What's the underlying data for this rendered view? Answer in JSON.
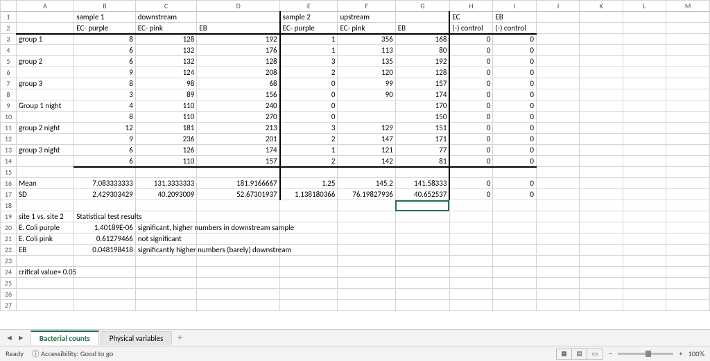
{
  "columns": [
    "A",
    "B",
    "C",
    "D",
    "E",
    "F",
    "G",
    "H",
    "I",
    "J",
    "K",
    "L",
    "M"
  ],
  "rowCount": 27,
  "selectedCell": {
    "row": 18,
    "col": 6
  },
  "headerRow1": {
    "B": "sample 1",
    "C": "downstream",
    "E": "sample 2",
    "F": "upstream",
    "H": "EC",
    "I": "EB"
  },
  "headerRow2": {
    "B": "EC- purple",
    "C": "EC- pink",
    "D": "EB",
    "E": "EC- purple",
    "F": "EC- pink",
    "G": "EB",
    "H": "(-) control",
    "I": "(-) control"
  },
  "dataRows": [
    {
      "A": "group 1",
      "B": 8,
      "C": 128,
      "D": 192,
      "E": 1,
      "F": 356,
      "G": 168,
      "H": 0,
      "I": 0
    },
    {
      "A": "",
      "B": 6,
      "C": 132,
      "D": 176,
      "E": 1,
      "F": 113,
      "G": 80,
      "H": 0,
      "I": 0
    },
    {
      "A": "group 2",
      "B": 6,
      "C": 132,
      "D": 128,
      "E": 3,
      "F": 135,
      "G": 192,
      "H": 0,
      "I": 0
    },
    {
      "A": "",
      "B": 9,
      "C": 124,
      "D": 208,
      "E": 2,
      "F": 120,
      "G": 128,
      "H": 0,
      "I": 0
    },
    {
      "A": "group 3",
      "B": 8,
      "C": 98,
      "D": 68,
      "E": 0,
      "F": 99,
      "G": 157,
      "H": 0,
      "I": 0
    },
    {
      "A": "",
      "B": 3,
      "C": 89,
      "D": 156,
      "E": 0,
      "F": 90,
      "G": 174,
      "H": 0,
      "I": 0
    },
    {
      "A": "Group 1 night",
      "B": 4,
      "C": 110,
      "D": 240,
      "E": 0,
      "F": "",
      "G": 170,
      "H": 0,
      "I": 0
    },
    {
      "A": "",
      "B": 8,
      "C": 110,
      "D": 270,
      "E": 0,
      "F": "",
      "G": 150,
      "H": 0,
      "I": 0
    },
    {
      "A": "group 2 night",
      "B": 12,
      "C": 181,
      "D": 213,
      "E": 3,
      "F": 129,
      "G": 151,
      "H": 0,
      "I": 0
    },
    {
      "A": "",
      "B": 9,
      "C": 236,
      "D": 201,
      "E": 2,
      "F": 147,
      "G": 171,
      "H": 0,
      "I": 0
    },
    {
      "A": "group 3 night",
      "B": 6,
      "C": 126,
      "D": 174,
      "E": 1,
      "F": 121,
      "G": 77,
      "H": 0,
      "I": 0
    },
    {
      "A": "",
      "B": 6,
      "C": 110,
      "D": 157,
      "E": 2,
      "F": 142,
      "G": 81,
      "H": 0,
      "I": 0
    }
  ],
  "statsRows": [
    {
      "A": "Mean",
      "B": "7.083333333",
      "C": "131.3333333",
      "D": "181.9166667",
      "E": "1.25",
      "F": "145.2",
      "G": "141.58333",
      "H": 0,
      "I": 0
    },
    {
      "A": "SD",
      "B": "2.429303429",
      "C": "40.2093009",
      "D": "52.67301937",
      "E": "1.138180366",
      "F": "76.19827936",
      "G": "40.652537",
      "H": 0,
      "I": 0
    }
  ],
  "testHeader": "Statistical  test results",
  "site": "site 1 vs. site 2",
  "testRows": [
    {
      "A": "E. Coli purple",
      "B": "1.40189E-06",
      "C": "significant, higher numbers in downstream sample"
    },
    {
      "A": "E. Coli pink",
      "B": "0.61279466",
      "C": "not significant"
    },
    {
      "A": "EB",
      "B": "0.048198418",
      "C": "significantly higher numbers (barely) downstream"
    }
  ],
  "critical": "critical value= 0.05",
  "tabs": {
    "active": "Bacterial counts",
    "others": [
      "Physical variables"
    ]
  },
  "status": {
    "ready": "Ready",
    "acc": "Accessibility: Good to go",
    "zoom": "100%"
  }
}
